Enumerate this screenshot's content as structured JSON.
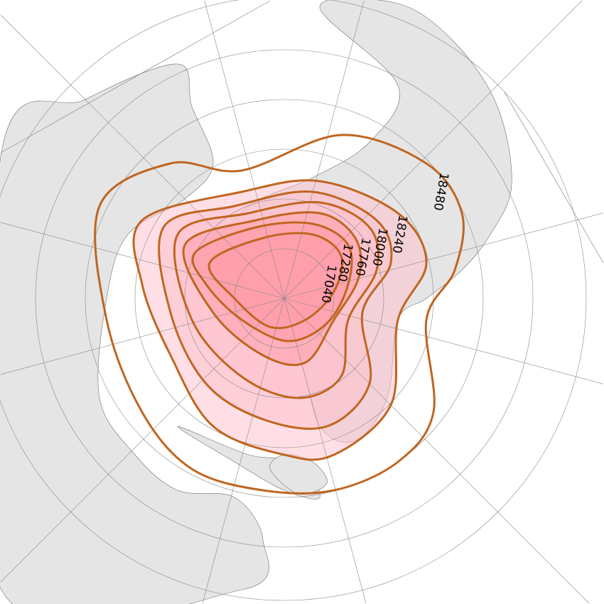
{
  "map": {
    "projection": "polar stereographic (rotated)",
    "colors": {
      "land": "#e5e5e5",
      "border": "#6e6e6e",
      "graticule": "#888888",
      "contour": "#c0651f",
      "fill_outer": "#ffc0cb",
      "fill_inner": "#ff9aa6"
    },
    "contour_labels": [
      "17040",
      "17280",
      "17760",
      "18000",
      "18240",
      "18480"
    ]
  }
}
